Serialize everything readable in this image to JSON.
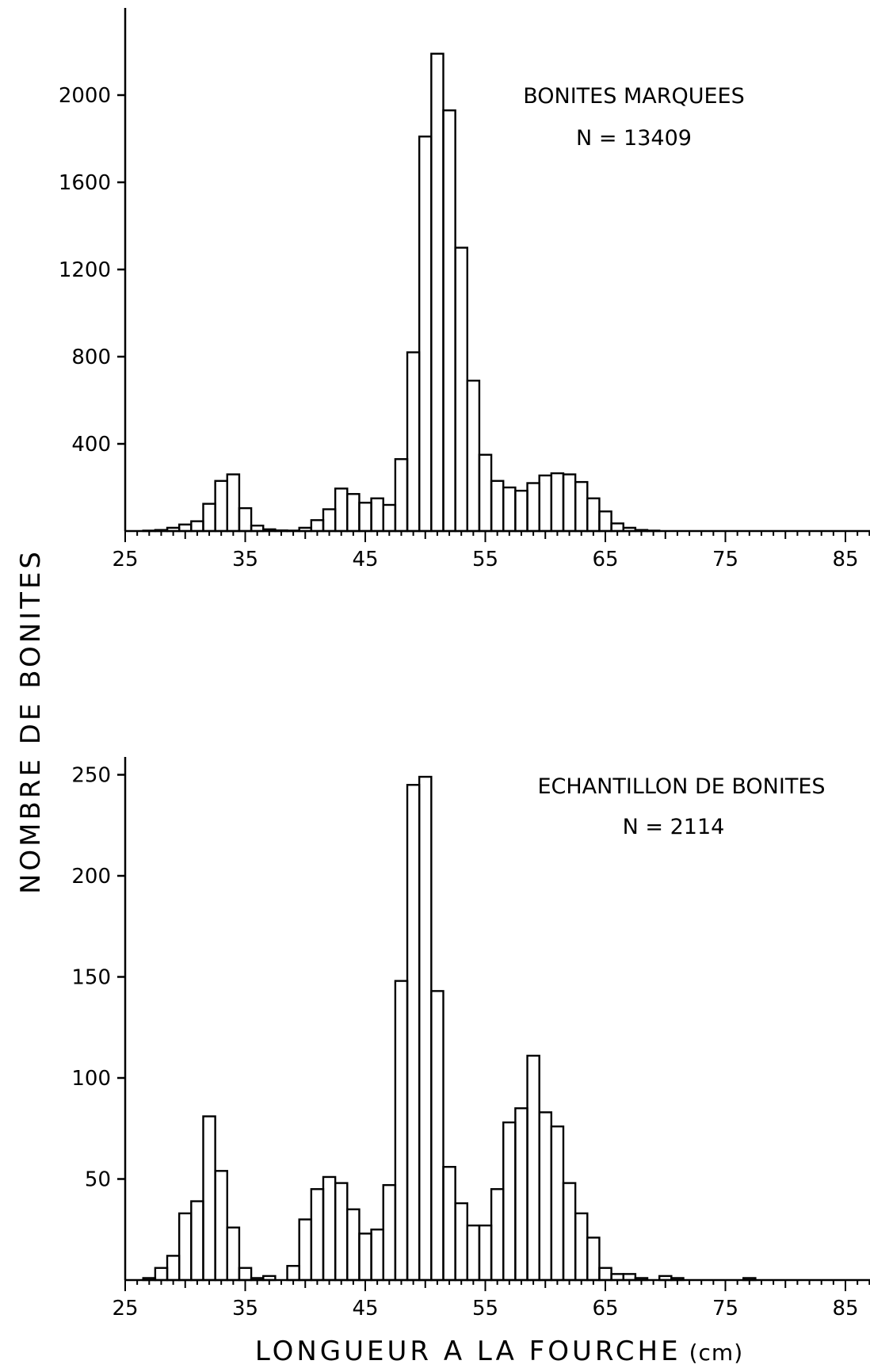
{
  "figure": {
    "ylabel": "NOMBRE DE BONITES",
    "xlabel": "LONGUEUR A LA FOURCHE",
    "xlabel_unit": "(cm)"
  },
  "chart_data": [
    {
      "type": "bar",
      "title": "BONITES MARQUEES",
      "subtitle": "N = 13409",
      "xlabel": "LONGUEUR A LA FOURCHE (cm)",
      "ylabel": "NOMBRE DE BONITES",
      "xlim": [
        25,
        87
      ],
      "ylim": [
        0,
        2200
      ],
      "xticks": [
        25,
        35,
        45,
        55,
        65,
        75,
        85
      ],
      "yticks": [
        400,
        800,
        1200,
        1600,
        2000
      ],
      "grid": false,
      "legend": "none",
      "bin_width": 1,
      "x": [
        27,
        28,
        29,
        30,
        31,
        32,
        33,
        34,
        35,
        36,
        37,
        38,
        39,
        40,
        41,
        42,
        43,
        44,
        45,
        46,
        47,
        48,
        49,
        50,
        51,
        52,
        53,
        54,
        55,
        56,
        57,
        58,
        59,
        60,
        61,
        62,
        63,
        64,
        65,
        66,
        67,
        68,
        69
      ],
      "values": [
        2,
        5,
        15,
        30,
        45,
        125,
        230,
        260,
        105,
        25,
        8,
        3,
        2,
        15,
        50,
        100,
        195,
        170,
        130,
        150,
        120,
        330,
        820,
        1810,
        2190,
        1930,
        1300,
        690,
        350,
        230,
        200,
        185,
        220,
        255,
        265,
        260,
        225,
        150,
        90,
        35,
        15,
        5,
        2
      ]
    },
    {
      "type": "bar",
      "title": "ECHANTILLON DE BONITES",
      "subtitle": "N = 2114",
      "xlabel": "LONGUEUR A LA FOURCHE (cm)",
      "ylabel": "NOMBRE DE BONITES",
      "xlim": [
        25,
        87
      ],
      "ylim": [
        0,
        260
      ],
      "xticks": [
        25,
        35,
        45,
        55,
        65,
        75,
        85
      ],
      "yticks": [
        50,
        100,
        150,
        200,
        250
      ],
      "grid": false,
      "legend": "none",
      "bin_width": 1,
      "x": [
        27,
        28,
        29,
        30,
        31,
        32,
        33,
        34,
        35,
        36,
        37,
        38,
        39,
        40,
        41,
        42,
        43,
        44,
        45,
        46,
        47,
        48,
        49,
        50,
        51,
        52,
        53,
        54,
        55,
        56,
        57,
        58,
        59,
        60,
        61,
        62,
        63,
        64,
        65,
        66,
        67,
        68,
        69,
        70,
        71,
        72,
        73,
        74,
        75,
        76,
        77
      ],
      "values": [
        1,
        6,
        12,
        33,
        39,
        81,
        54,
        26,
        6,
        1,
        2,
        0,
        7,
        30,
        45,
        51,
        48,
        35,
        23,
        25,
        47,
        148,
        245,
        249,
        143,
        56,
        38,
        27,
        27,
        45,
        78,
        85,
        111,
        83,
        76,
        48,
        33,
        21,
        6,
        3,
        3,
        1,
        0,
        2,
        1,
        0,
        0,
        0,
        0,
        0,
        1
      ]
    }
  ]
}
